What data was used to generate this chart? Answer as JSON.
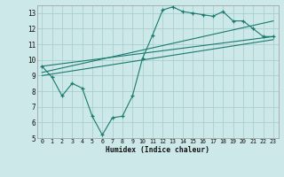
{
  "background_color": "#cce8e8",
  "grid_color": "#aacece",
  "line_color": "#1a7a6e",
  "series1_x": [
    0,
    1,
    2,
    3,
    4,
    5,
    6,
    7,
    8,
    9,
    10,
    11,
    12,
    13,
    14,
    15,
    16,
    17,
    18,
    19,
    20,
    21,
    22,
    23
  ],
  "series1_y": [
    9.6,
    8.9,
    7.7,
    8.5,
    8.2,
    6.4,
    5.2,
    6.3,
    6.4,
    7.7,
    10.1,
    11.6,
    13.2,
    13.4,
    13.1,
    13.0,
    12.9,
    12.8,
    13.1,
    12.5,
    12.5,
    12.0,
    11.5,
    11.5
  ],
  "series2_x": [
    0,
    23
  ],
  "series2_y": [
    9.0,
    11.3
  ],
  "series3_x": [
    0,
    23
  ],
  "series3_y": [
    9.6,
    11.5
  ],
  "series4_x": [
    0,
    23
  ],
  "series4_y": [
    9.2,
    12.5
  ],
  "xlim": [
    -0.5,
    23.5
  ],
  "ylim": [
    5,
    13.5
  ],
  "yticks": [
    5,
    6,
    7,
    8,
    9,
    10,
    11,
    12,
    13
  ],
  "xticks": [
    0,
    1,
    2,
    3,
    4,
    5,
    6,
    7,
    8,
    9,
    10,
    11,
    12,
    13,
    14,
    15,
    16,
    17,
    18,
    19,
    20,
    21,
    22,
    23
  ],
  "xlabel": "Humidex (Indice chaleur)"
}
